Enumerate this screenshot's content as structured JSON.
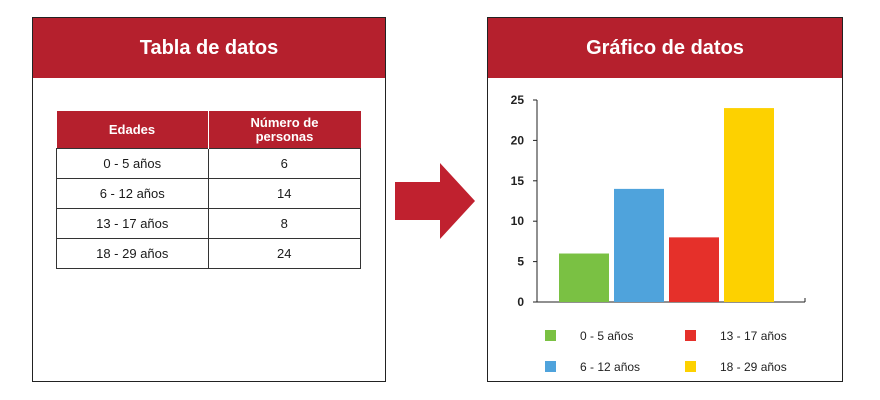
{
  "table_panel": {
    "title": "Tabla de datos",
    "headers": [
      "Edades",
      "Número de personas"
    ],
    "rows": [
      [
        "0 - 5 años",
        "6"
      ],
      [
        "6 - 12 años",
        "14"
      ],
      [
        "13 - 17 años",
        "8"
      ],
      [
        "18 - 29 años",
        "24"
      ]
    ]
  },
  "chart_panel": {
    "title": "Gráfico de datos"
  },
  "colors": {
    "header_red": "#b5202d",
    "arrow_red": "#c0212f"
  },
  "chart_data": {
    "type": "bar",
    "categories": [
      "0 - 5 años",
      "6 - 12 años",
      "13 - 17 años",
      "18 - 29 años"
    ],
    "values": [
      6,
      14,
      8,
      24
    ],
    "colors": [
      "#7ac143",
      "#4fa3dc",
      "#e5302a",
      "#fdd100"
    ],
    "ylim": [
      0,
      25
    ],
    "yticks": [
      0,
      5,
      10,
      15,
      20,
      25
    ],
    "grid": false,
    "legend": {
      "placement": "bottom",
      "entries": [
        "0 - 5 años",
        "13 - 17 años",
        "6 - 12 años",
        "18 - 29 años"
      ]
    }
  }
}
